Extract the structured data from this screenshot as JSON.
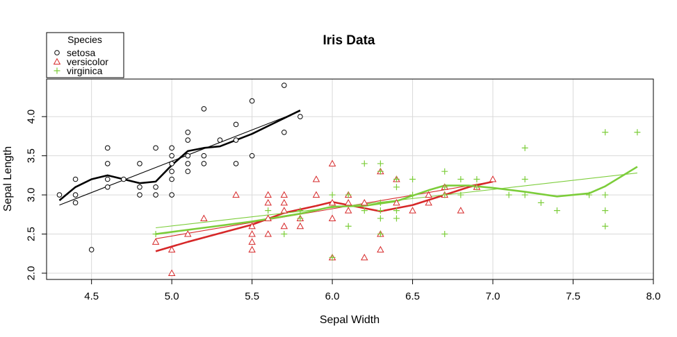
{
  "chart_data": {
    "type": "scatter",
    "title": "Iris Data",
    "xlabel": "Sepal Width",
    "ylabel": "Sepal Length",
    "xlim": [
      4.22,
      8.0
    ],
    "ylim": [
      1.92,
      4.48
    ],
    "x_ticks": [
      4.5,
      5.0,
      5.5,
      6.0,
      6.5,
      7.0,
      7.5,
      8.0
    ],
    "x_tick_labels": [
      "4.5",
      "5.0",
      "5.5",
      "6.0",
      "6.5",
      "7.0",
      "7.5",
      "8.0"
    ],
    "y_ticks": [
      2.0,
      2.5,
      3.0,
      3.5,
      4.0
    ],
    "y_tick_labels": [
      "2.0",
      "2.5",
      "3.0",
      "3.5",
      "4.0"
    ],
    "grid": true,
    "legend": {
      "title": "Species",
      "position": "top-left"
    },
    "series": [
      {
        "name": "setosa",
        "marker": "circle",
        "color": "#000000",
        "fill": "#ffffff",
        "points": [
          [
            4.3,
            3.0
          ],
          [
            4.4,
            2.9
          ],
          [
            4.4,
            3.0
          ],
          [
            4.4,
            3.2
          ],
          [
            4.5,
            2.3
          ],
          [
            4.6,
            3.1
          ],
          [
            4.6,
            3.2
          ],
          [
            4.6,
            3.4
          ],
          [
            4.6,
            3.6
          ],
          [
            4.7,
            3.2
          ],
          [
            4.8,
            3.0
          ],
          [
            4.8,
            3.1
          ],
          [
            4.8,
            3.4
          ],
          [
            4.9,
            3.0
          ],
          [
            4.9,
            3.1
          ],
          [
            4.9,
            3.6
          ],
          [
            5.0,
            3.0
          ],
          [
            5.0,
            3.2
          ],
          [
            5.0,
            3.3
          ],
          [
            5.0,
            3.4
          ],
          [
            5.0,
            3.5
          ],
          [
            5.0,
            3.6
          ],
          [
            5.1,
            3.3
          ],
          [
            5.1,
            3.4
          ],
          [
            5.1,
            3.5
          ],
          [
            5.1,
            3.7
          ],
          [
            5.1,
            3.8
          ],
          [
            5.2,
            3.4
          ],
          [
            5.2,
            3.5
          ],
          [
            5.2,
            4.1
          ],
          [
            5.3,
            3.7
          ],
          [
            5.4,
            3.4
          ],
          [
            5.4,
            3.7
          ],
          [
            5.4,
            3.9
          ],
          [
            5.5,
            3.5
          ],
          [
            5.5,
            4.2
          ],
          [
            5.7,
            3.8
          ],
          [
            5.7,
            4.4
          ],
          [
            5.8,
            4.0
          ]
        ],
        "fit_line": [
          [
            4.3,
            2.87
          ],
          [
            5.8,
            4.07
          ]
        ],
        "smooth_line": [
          [
            4.3,
            2.93
          ],
          [
            4.4,
            3.1
          ],
          [
            4.5,
            3.2
          ],
          [
            4.6,
            3.25
          ],
          [
            4.7,
            3.2
          ],
          [
            4.8,
            3.15
          ],
          [
            4.9,
            3.17
          ],
          [
            5.0,
            3.38
          ],
          [
            5.1,
            3.56
          ],
          [
            5.2,
            3.6
          ],
          [
            5.3,
            3.62
          ],
          [
            5.4,
            3.7
          ],
          [
            5.5,
            3.78
          ],
          [
            5.6,
            3.88
          ],
          [
            5.7,
            3.98
          ],
          [
            5.8,
            4.08
          ]
        ]
      },
      {
        "name": "versicolor",
        "marker": "triangle",
        "color": "#d62728",
        "fill": "#ffffff",
        "points": [
          [
            4.9,
            2.4
          ],
          [
            5.0,
            2.0
          ],
          [
            5.0,
            2.3
          ],
          [
            5.1,
            2.5
          ],
          [
            5.2,
            2.7
          ],
          [
            5.4,
            3.0
          ],
          [
            5.5,
            2.3
          ],
          [
            5.5,
            2.4
          ],
          [
            5.5,
            2.5
          ],
          [
            5.5,
            2.6
          ],
          [
            5.6,
            2.5
          ],
          [
            5.6,
            2.7
          ],
          [
            5.6,
            2.9
          ],
          [
            5.6,
            3.0
          ],
          [
            5.7,
            2.6
          ],
          [
            5.7,
            2.8
          ],
          [
            5.7,
            2.9
          ],
          [
            5.7,
            3.0
          ],
          [
            5.8,
            2.6
          ],
          [
            5.8,
            2.7
          ],
          [
            5.9,
            3.0
          ],
          [
            5.9,
            3.2
          ],
          [
            6.0,
            2.2
          ],
          [
            6.0,
            2.7
          ],
          [
            6.0,
            2.9
          ],
          [
            6.0,
            3.4
          ],
          [
            6.1,
            2.8
          ],
          [
            6.1,
            2.9
          ],
          [
            6.1,
            3.0
          ],
          [
            6.2,
            2.2
          ],
          [
            6.2,
            2.9
          ],
          [
            6.3,
            2.3
          ],
          [
            6.3,
            2.5
          ],
          [
            6.3,
            3.3
          ],
          [
            6.4,
            2.9
          ],
          [
            6.4,
            3.2
          ],
          [
            6.5,
            2.8
          ],
          [
            6.6,
            2.9
          ],
          [
            6.6,
            3.0
          ],
          [
            6.7,
            3.0
          ],
          [
            6.7,
            3.1
          ],
          [
            6.8,
            2.8
          ],
          [
            6.9,
            3.1
          ],
          [
            7.0,
            3.2
          ]
        ],
        "fit_line": [
          [
            4.9,
            2.44
          ],
          [
            7.0,
            3.17
          ]
        ],
        "smooth_line": [
          [
            4.9,
            2.28
          ],
          [
            5.1,
            2.4
          ],
          [
            5.3,
            2.51
          ],
          [
            5.5,
            2.62
          ],
          [
            5.7,
            2.77
          ],
          [
            5.9,
            2.86
          ],
          [
            6.0,
            2.91
          ],
          [
            6.1,
            2.87
          ],
          [
            6.3,
            2.79
          ],
          [
            6.5,
            2.87
          ],
          [
            6.7,
            3.0
          ],
          [
            6.85,
            3.1
          ],
          [
            7.0,
            3.17
          ]
        ]
      },
      {
        "name": "virginica",
        "marker": "plus",
        "color": "#7ccd3a",
        "fill": "none",
        "points": [
          [
            4.9,
            2.5
          ],
          [
            5.6,
            2.8
          ],
          [
            5.7,
            2.5
          ],
          [
            5.8,
            2.7
          ],
          [
            5.8,
            2.8
          ],
          [
            6.0,
            2.2
          ],
          [
            6.0,
            3.0
          ],
          [
            6.1,
            2.6
          ],
          [
            6.1,
            3.0
          ],
          [
            6.2,
            2.8
          ],
          [
            6.2,
            3.4
          ],
          [
            6.3,
            2.5
          ],
          [
            6.3,
            2.7
          ],
          [
            6.3,
            2.8
          ],
          [
            6.3,
            2.9
          ],
          [
            6.3,
            3.3
          ],
          [
            6.3,
            3.4
          ],
          [
            6.4,
            2.7
          ],
          [
            6.4,
            2.8
          ],
          [
            6.4,
            3.1
          ],
          [
            6.4,
            3.2
          ],
          [
            6.5,
            3.0
          ],
          [
            6.5,
            3.2
          ],
          [
            6.7,
            2.5
          ],
          [
            6.7,
            3.0
          ],
          [
            6.7,
            3.1
          ],
          [
            6.7,
            3.3
          ],
          [
            6.8,
            3.0
          ],
          [
            6.8,
            3.2
          ],
          [
            6.9,
            3.1
          ],
          [
            6.9,
            3.2
          ],
          [
            7.1,
            3.0
          ],
          [
            7.2,
            3.0
          ],
          [
            7.2,
            3.2
          ],
          [
            7.2,
            3.6
          ],
          [
            7.3,
            2.9
          ],
          [
            7.4,
            2.8
          ],
          [
            7.6,
            3.0
          ],
          [
            7.7,
            2.6
          ],
          [
            7.7,
            2.8
          ],
          [
            7.7,
            3.0
          ],
          [
            7.7,
            3.8
          ],
          [
            7.9,
            3.8
          ]
        ],
        "fit_line": [
          [
            4.9,
            2.58
          ],
          [
            7.9,
            3.28
          ]
        ],
        "smooth_line": [
          [
            4.9,
            2.5
          ],
          [
            5.2,
            2.58
          ],
          [
            5.5,
            2.66
          ],
          [
            5.8,
            2.76
          ],
          [
            6.0,
            2.85
          ],
          [
            6.2,
            2.86
          ],
          [
            6.4,
            2.92
          ],
          [
            6.6,
            3.06
          ],
          [
            6.7,
            3.12
          ],
          [
            6.85,
            3.12
          ],
          [
            7.0,
            3.09
          ],
          [
            7.2,
            3.04
          ],
          [
            7.4,
            2.98
          ],
          [
            7.6,
            3.02
          ],
          [
            7.7,
            3.11
          ],
          [
            7.9,
            3.36
          ]
        ]
      }
    ]
  }
}
